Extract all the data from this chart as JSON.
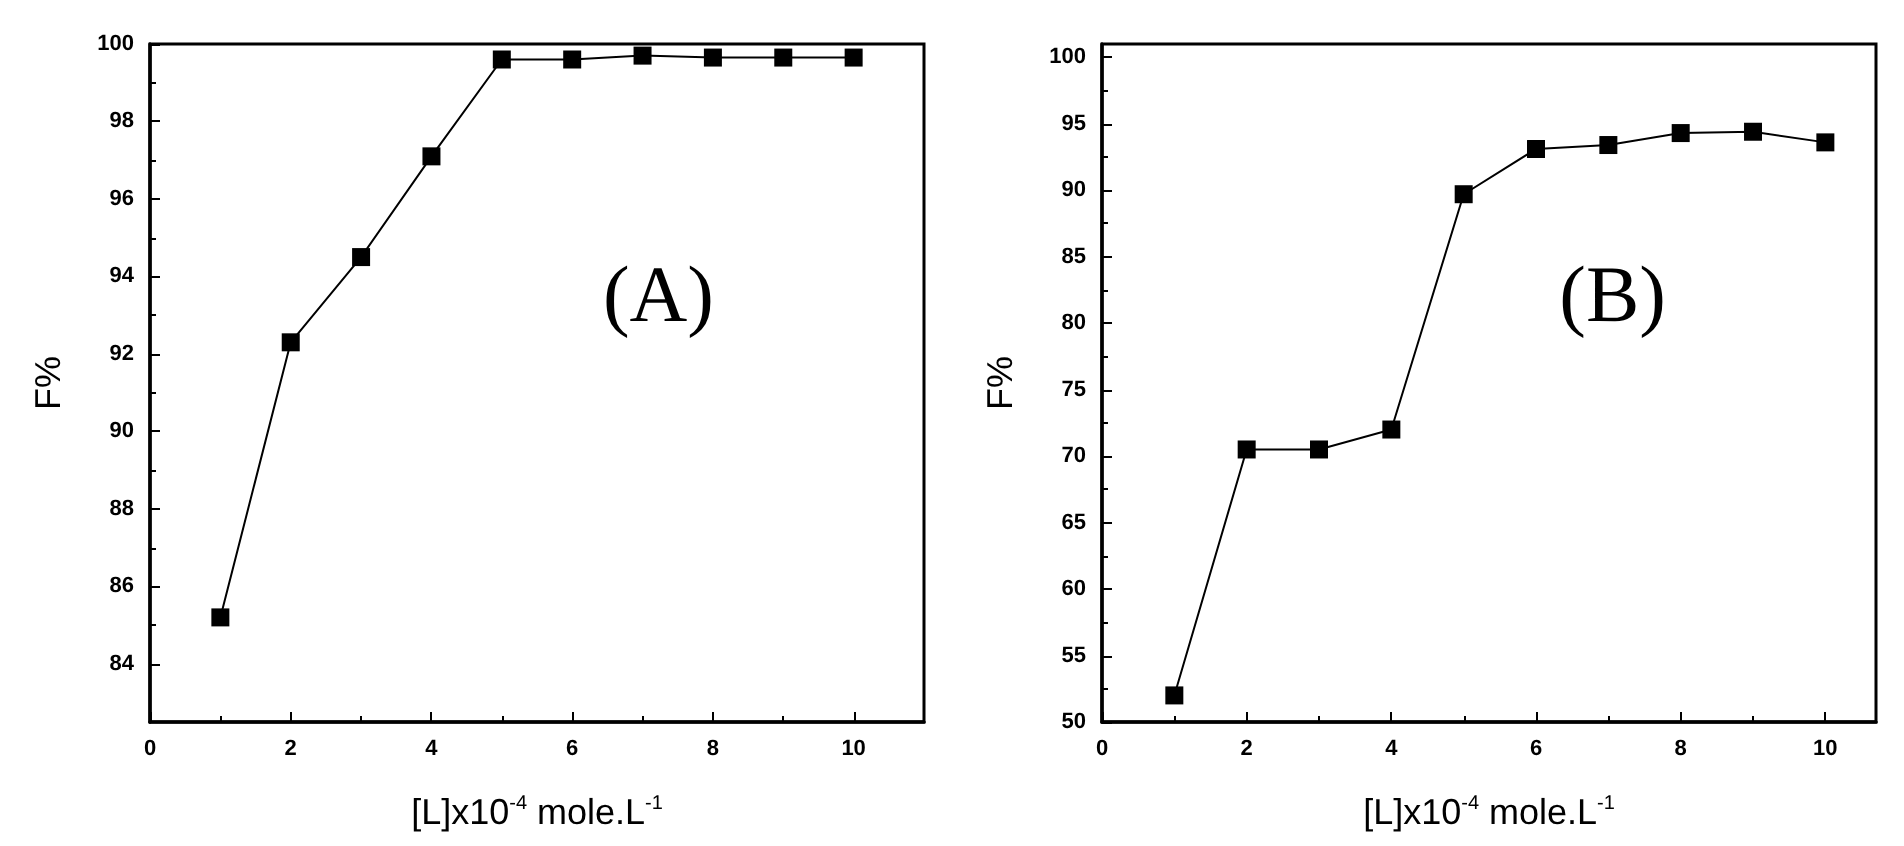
{
  "chart_data": [
    {
      "type": "line",
      "xlabel": "[L]x10$^{-4}$ mole.L$^{-1}$",
      "ylabel": "F%",
      "annotations": [
        "(A)"
      ],
      "x": [
        1,
        2,
        3,
        4,
        5,
        6,
        7,
        8,
        9,
        10
      ],
      "series": [
        {
          "color": "#000000",
          "values": [
            85.2,
            92.3,
            94.5,
            97.1,
            99.6,
            99.6,
            99.7,
            99.65,
            99.65,
            99.65
          ]
        }
      ],
      "xlim": [
        0,
        11
      ],
      "xticks": [
        0,
        2,
        4,
        6,
        8,
        10
      ],
      "ylim": [
        82.5,
        100
      ],
      "yticks": [
        84,
        86,
        88,
        90,
        92,
        94,
        96,
        98,
        100
      ],
      "grid": false,
      "marker": "square",
      "line_style": "solid"
    },
    {
      "type": "line",
      "xlabel": "[L]x10$^{-4}$ mole.L$^{-1}$",
      "ylabel": "F%",
      "annotations": [
        "(B)"
      ],
      "x": [
        1,
        2,
        3,
        4,
        5,
        6,
        7,
        8,
        9,
        10
      ],
      "series": [
        {
          "color": "#000000",
          "values": [
            52,
            70.5,
            70.5,
            72,
            89.7,
            93.1,
            93.4,
            94.3,
            94.4,
            93.6
          ]
        }
      ],
      "xlim": [
        0,
        10.7
      ],
      "xticks": [
        0,
        2,
        4,
        6,
        8,
        10
      ],
      "ylim": [
        50,
        101
      ],
      "yticks": [
        50,
        55,
        60,
        65,
        70,
        75,
        80,
        85,
        90,
        95,
        100
      ],
      "grid": false,
      "marker": "square",
      "line_style": "solid"
    }
  ]
}
